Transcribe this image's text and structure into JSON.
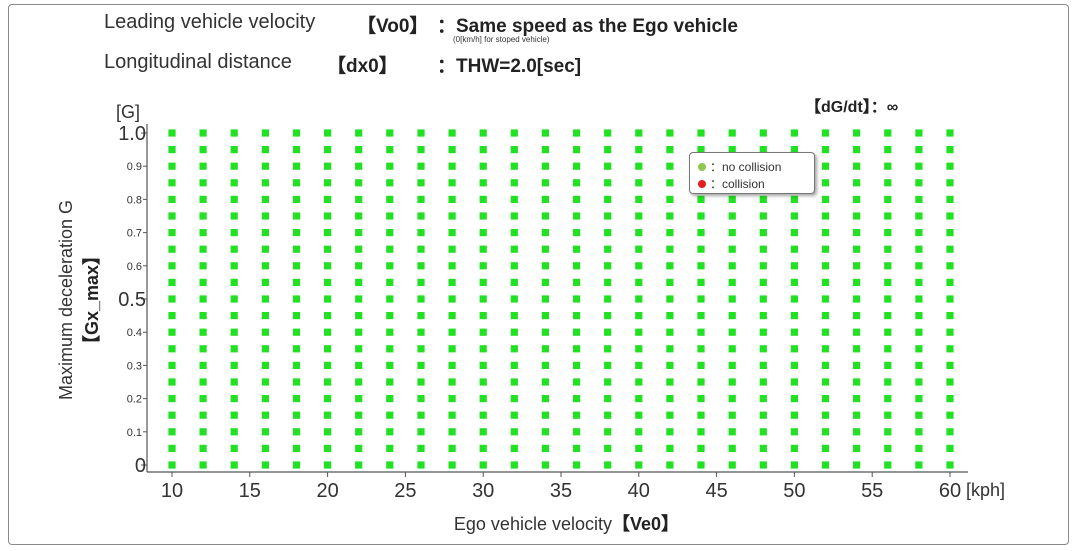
{
  "header": {
    "leading_velocity_label": "Leading vehicle velocity",
    "leading_velocity_symbol": "【Vo0】",
    "leading_velocity_value": "：Same speed as the Ego vehicle",
    "leading_velocity_note": "(0[km/h] for stoped vehicle)",
    "distance_label": "Longitudinal distance",
    "distance_symbol": "【dx0】",
    "distance_value": "：THW=2.0[sec]",
    "jerk_label": "【dG/dt】：∞"
  },
  "legend": {
    "no_collision": "：no collision",
    "collision": "：collision"
  },
  "colors": {
    "no_collision": "#22e022",
    "collision": "#e02020",
    "legend_no_collision": "#8ec64e"
  },
  "chart_data": {
    "type": "scatter",
    "title": "",
    "xlabel": "Ego vehicle velocity",
    "xlabel_symbol": "【Ve0】",
    "xunit": "[kph]",
    "ylabel": "Maximum deceleration G",
    "ylabel_symbol": "【Gx_max】",
    "yunit": "[G]",
    "xlim": [
      10,
      60
    ],
    "ylim": [
      0,
      1.0
    ],
    "x_ticks": [
      "10",
      "15",
      "20",
      "25",
      "30",
      "35",
      "40",
      "45",
      "50",
      "55",
      "60"
    ],
    "y_ticks_major": [
      {
        "value": 0,
        "label": "0"
      },
      {
        "value": 0.5,
        "label": "0.5"
      },
      {
        "value": 1.0,
        "label": "1.0"
      }
    ],
    "y_ticks_minor": [
      {
        "value": 0.1,
        "label": "0.1"
      },
      {
        "value": 0.2,
        "label": "0.2"
      },
      {
        "value": 0.3,
        "label": "0.3"
      },
      {
        "value": 0.4,
        "label": "0.4"
      },
      {
        "value": 0.6,
        "label": "0.6"
      },
      {
        "value": 0.7,
        "label": "0.7"
      },
      {
        "value": 0.8,
        "label": "0.8"
      },
      {
        "value": 0.9,
        "label": "0.9"
      }
    ],
    "grid_x": {
      "start": 10,
      "end": 60,
      "step": 2
    },
    "grid_y": {
      "start": 0,
      "end": 1.0,
      "step": 0.05
    },
    "series": [
      {
        "name": "no collision",
        "status": "no_collision",
        "coverage": "all grid points"
      },
      {
        "name": "collision",
        "status": "collision",
        "coverage": "none"
      }
    ],
    "legend_position": "top-right"
  }
}
